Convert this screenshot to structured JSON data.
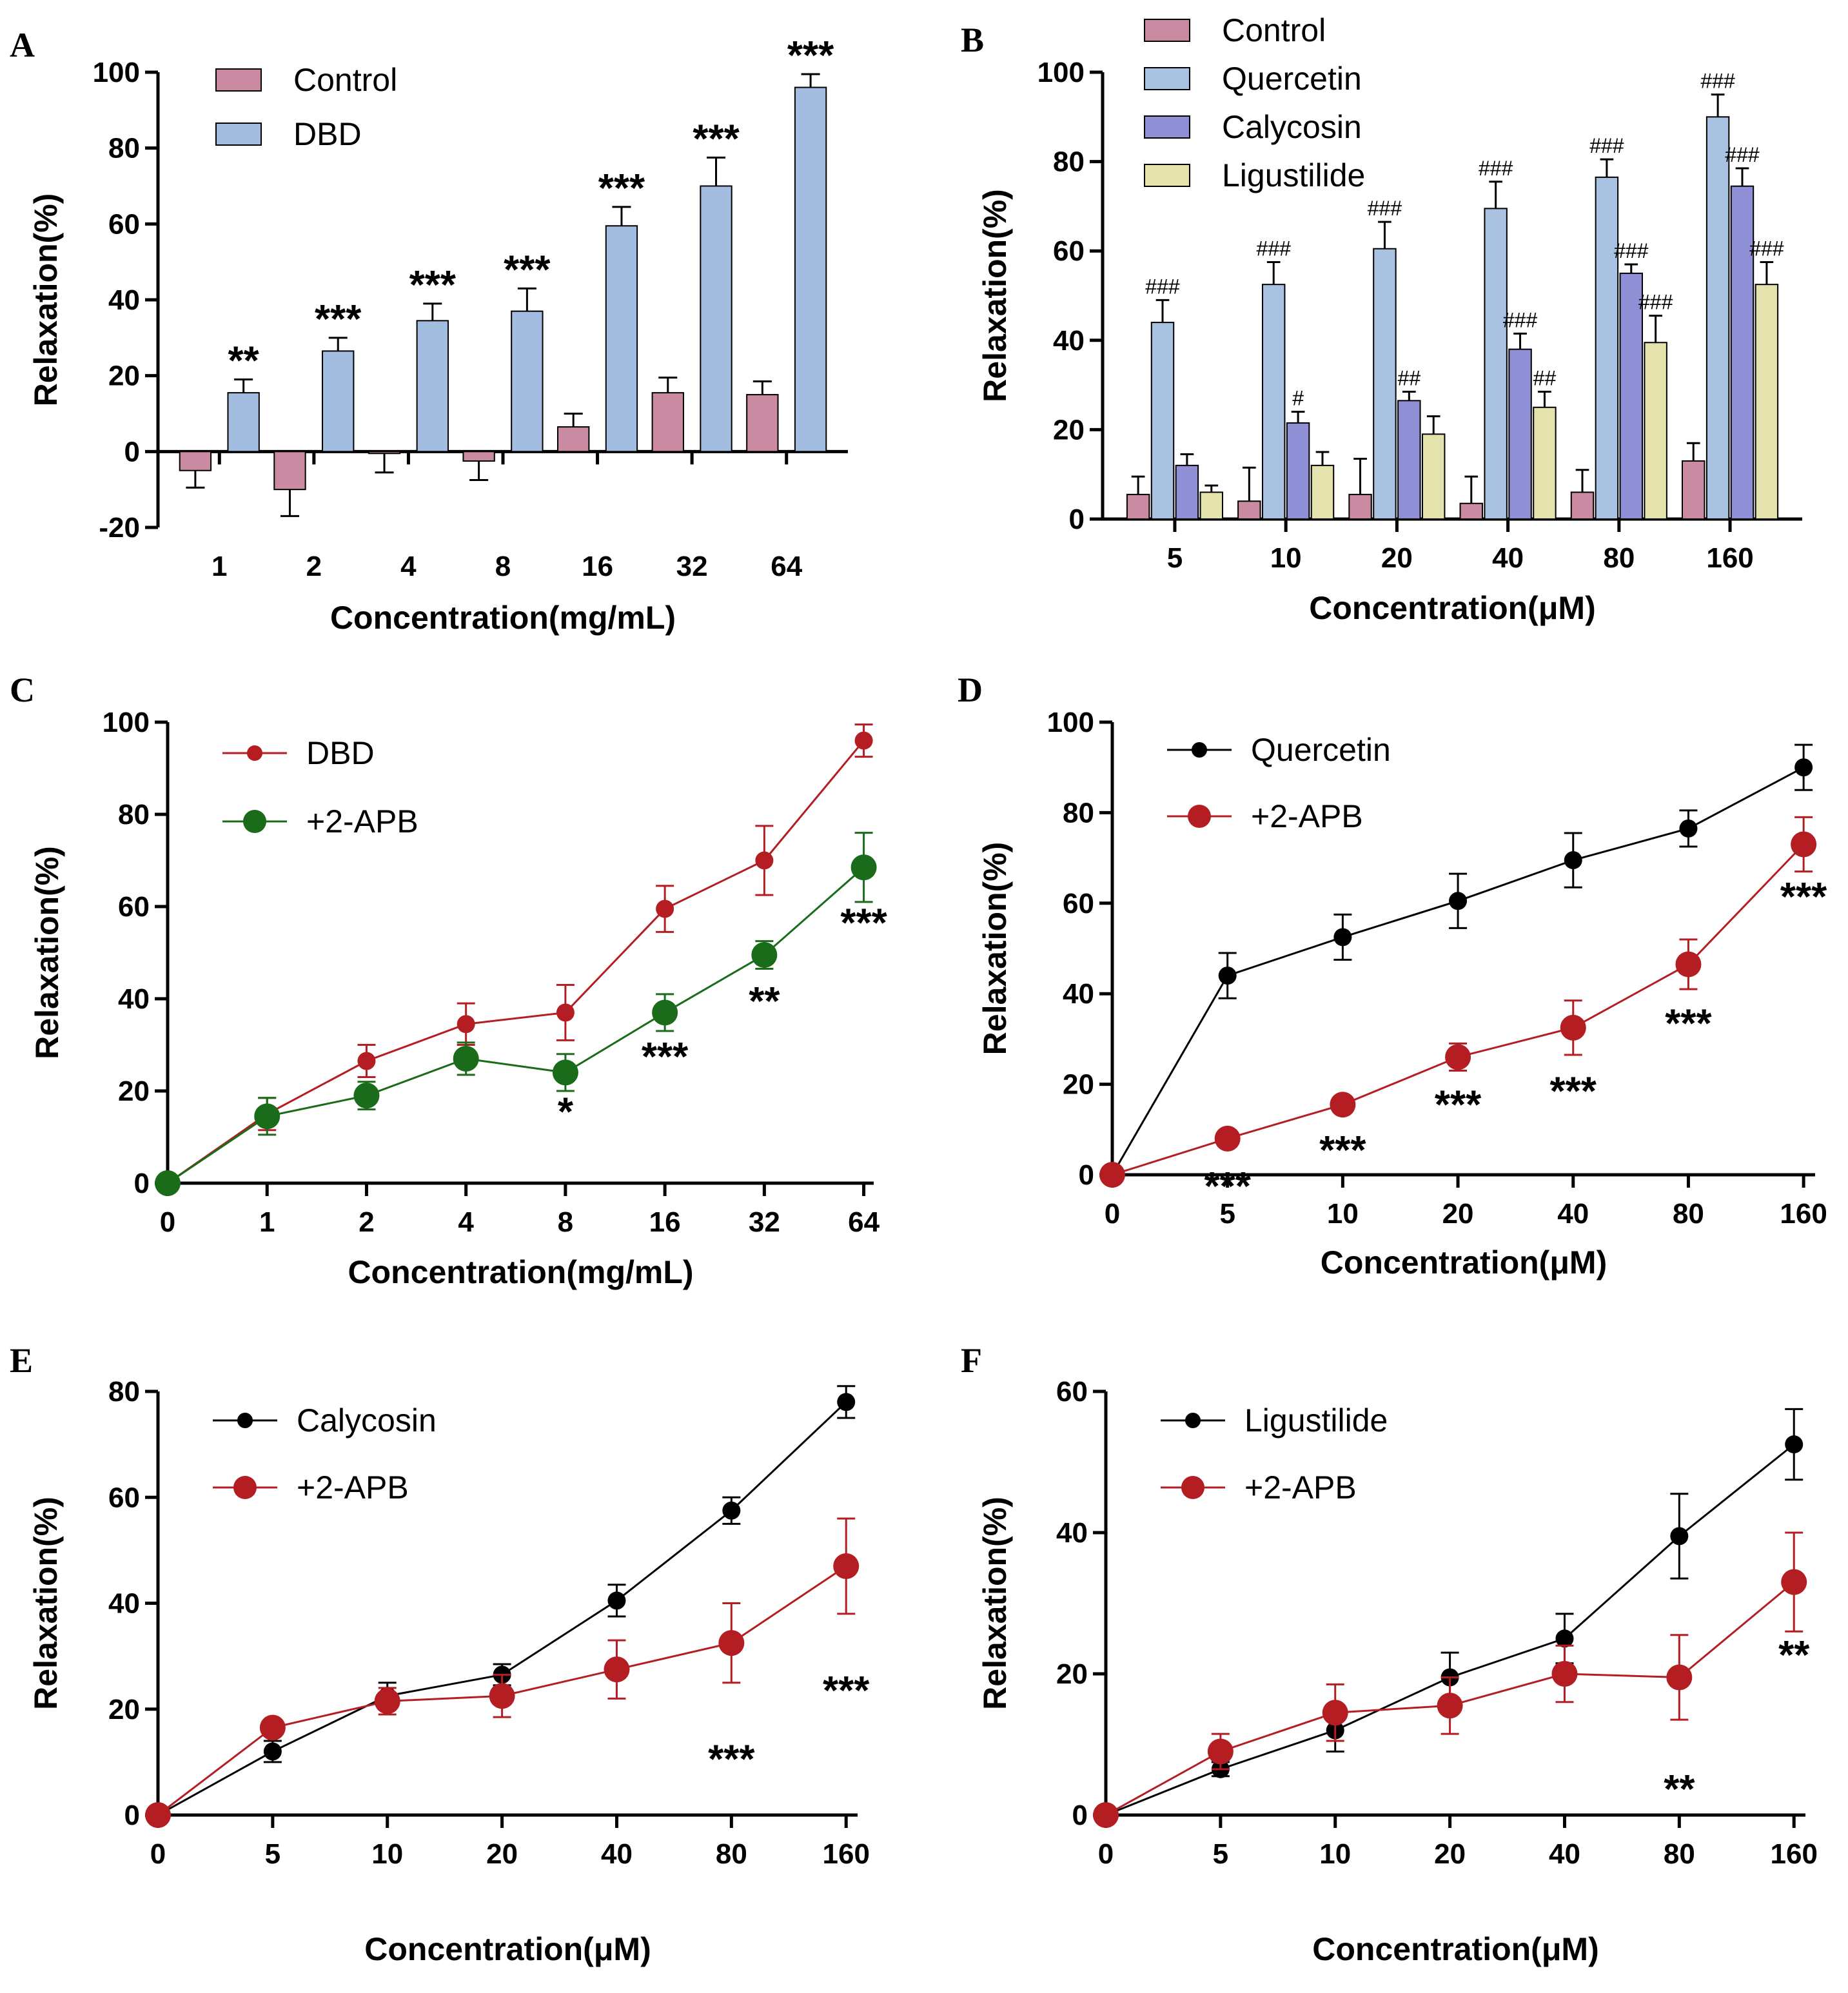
{
  "figure": {
    "colors": {
      "control": "#c98aa2",
      "dbd": "#a3bde0",
      "quercetin": "#a9c2e1",
      "calycosin": "#8f8fd6",
      "ligustilide": "#e5e3ad",
      "red": "#b41e22",
      "green": "#1a6b1a",
      "black": "#000000"
    }
  },
  "chart_data": [
    {
      "id": "A",
      "type": "bar",
      "panel_label": "A",
      "xlabel": "Concentration(mg/mL)",
      "ylabel": "Relaxation(%)",
      "ylim": [
        -20,
        100
      ],
      "yticks": [
        "-20",
        "0",
        "20",
        "40",
        "60",
        "80",
        "100"
      ],
      "categories": [
        "1",
        "2",
        "4",
        "8",
        "16",
        "32",
        "64"
      ],
      "legend": "top-left",
      "series": [
        {
          "name": "Control",
          "color": "#c98aa2",
          "values": [
            -5,
            -10,
            -0.5,
            -2.5,
            6.5,
            15.5,
            15
          ],
          "errors": [
            4.5,
            7,
            5,
            5,
            3.5,
            4,
            3.5
          ]
        },
        {
          "name": "DBD",
          "color": "#a3bde0",
          "values": [
            15.5,
            26.5,
            34.5,
            37,
            59.5,
            70,
            96
          ],
          "errors": [
            3.5,
            3.5,
            4.5,
            6,
            5,
            7.5,
            3.5
          ]
        }
      ],
      "annotations": [
        {
          "category": "1",
          "series": "DBD",
          "text": "**"
        },
        {
          "category": "2",
          "series": "DBD",
          "text": "***"
        },
        {
          "category": "4",
          "series": "DBD",
          "text": "***"
        },
        {
          "category": "8",
          "series": "DBD",
          "text": "***"
        },
        {
          "category": "16",
          "series": "DBD",
          "text": "***"
        },
        {
          "category": "32",
          "series": "DBD",
          "text": "***"
        },
        {
          "category": "64",
          "series": "DBD",
          "text": "***"
        }
      ]
    },
    {
      "id": "B",
      "type": "bar",
      "panel_label": "B",
      "xlabel": "Concentration(μM)",
      "ylabel": "Relaxation(%)",
      "ylim": [
        0,
        100
      ],
      "yticks": [
        "0",
        "20",
        "40",
        "60",
        "80",
        "100"
      ],
      "categories": [
        "5",
        "10",
        "20",
        "40",
        "80",
        "160"
      ],
      "legend": "top-left",
      "series": [
        {
          "name": "Control",
          "color": "#c98aa2",
          "values": [
            5.5,
            4,
            5.5,
            3.5,
            6,
            13
          ],
          "errors": [
            4,
            7.5,
            8,
            6,
            5,
            4
          ]
        },
        {
          "name": "Quercetin",
          "color": "#a9c2e1",
          "values": [
            44,
            52.5,
            60.5,
            69.5,
            76.5,
            90
          ],
          "errors": [
            5,
            5,
            6,
            6,
            4,
            5
          ]
        },
        {
          "name": "Calycosin",
          "color": "#8f8fd6",
          "values": [
            12,
            21.5,
            26.5,
            38,
            55,
            74.5
          ],
          "errors": [
            2.5,
            2.5,
            2,
            3.5,
            2,
            4
          ]
        },
        {
          "name": "Ligustilide",
          "color": "#e5e3ad",
          "values": [
            6,
            12,
            19,
            25,
            39.5,
            52.5
          ],
          "errors": [
            1.5,
            3,
            4,
            3.5,
            6,
            5
          ]
        }
      ],
      "annotations": [
        {
          "category": "5",
          "series": "Quercetin",
          "text": "###"
        },
        {
          "category": "10",
          "series": "Quercetin",
          "text": "###"
        },
        {
          "category": "20",
          "series": "Quercetin",
          "text": "###"
        },
        {
          "category": "40",
          "series": "Quercetin",
          "text": "###"
        },
        {
          "category": "80",
          "series": "Quercetin",
          "text": "###"
        },
        {
          "category": "160",
          "series": "Quercetin",
          "text": "###"
        },
        {
          "category": "10",
          "series": "Calycosin",
          "text": "#"
        },
        {
          "category": "20",
          "series": "Calycosin",
          "text": "##"
        },
        {
          "category": "40",
          "series": "Calycosin",
          "text": "###"
        },
        {
          "category": "80",
          "series": "Calycosin",
          "text": "###"
        },
        {
          "category": "160",
          "series": "Calycosin",
          "text": "###"
        },
        {
          "category": "40",
          "series": "Ligustilide",
          "text": "##"
        },
        {
          "category": "80",
          "series": "Ligustilide",
          "text": "###"
        },
        {
          "category": "160",
          "series": "Ligustilide",
          "text": "###"
        }
      ]
    },
    {
      "id": "C",
      "type": "line",
      "panel_label": "C",
      "xlabel": "Concentration(mg/mL)",
      "ylabel": "Relaxation(%)",
      "ylim": [
        0,
        100
      ],
      "yticks": [
        "0",
        "20",
        "40",
        "60",
        "80",
        "100"
      ],
      "categories": [
        "0",
        "1",
        "2",
        "4",
        "8",
        "16",
        "32",
        "64"
      ],
      "legend": "top-left",
      "series": [
        {
          "name": "DBD",
          "color": "#b41e22",
          "marker_size": "small",
          "values": [
            0,
            15,
            26.5,
            34.5,
            37,
            59.5,
            70,
            96
          ],
          "errors": [
            0,
            3.5,
            3.5,
            4.5,
            6,
            5,
            7.5,
            3.5
          ]
        },
        {
          "name": "+2-APB",
          "color": "#1a6b1a",
          "marker_size": "large",
          "values": [
            0,
            14.5,
            19,
            27,
            24,
            37,
            49.5,
            68.5
          ],
          "errors": [
            0,
            4,
            3,
            3.5,
            4,
            4,
            3,
            7.5
          ]
        }
      ],
      "annotations": [
        {
          "category": "8",
          "text": "*",
          "y": 16
        },
        {
          "category": "16",
          "text": "***",
          "y": 28
        },
        {
          "category": "32",
          "text": "**",
          "y": 40
        },
        {
          "category": "64",
          "text": "***",
          "y": 57
        }
      ]
    },
    {
      "id": "D",
      "type": "line",
      "panel_label": "D",
      "xlabel": "Concentration(μM)",
      "ylabel": "Relaxation(%)",
      "ylim": [
        0,
        100
      ],
      "yticks": [
        "0",
        "20",
        "40",
        "60",
        "80",
        "100"
      ],
      "categories": [
        "0",
        "5",
        "10",
        "20",
        "40",
        "80",
        "160"
      ],
      "legend": "top-left",
      "series": [
        {
          "name": "Quercetin",
          "color": "#000000",
          "marker_size": "small",
          "values": [
            0,
            44,
            52.5,
            60.5,
            69.5,
            76.5,
            90
          ],
          "errors": [
            0,
            5,
            5,
            6,
            6,
            4,
            5
          ]
        },
        {
          "name": "+2-APB",
          "color": "#b41e22",
          "marker_size": "large",
          "values": [
            0,
            8,
            15.5,
            26,
            32.5,
            46.5,
            73
          ],
          "errors": [
            0,
            0,
            0,
            3,
            6,
            5.5,
            6
          ]
        }
      ],
      "annotations": [
        {
          "category": "5",
          "text": "***",
          "y": -2
        },
        {
          "category": "10",
          "text": "***",
          "y": 6
        },
        {
          "category": "20",
          "text": "***",
          "y": 16
        },
        {
          "category": "40",
          "text": "***",
          "y": 19
        },
        {
          "category": "80",
          "text": "***",
          "y": 34
        },
        {
          "category": "160",
          "text": "***",
          "y": 62
        }
      ]
    },
    {
      "id": "E",
      "type": "line",
      "panel_label": "E",
      "xlabel": "Concentration(μM)",
      "ylabel": "Relaxation(%)",
      "ylim": [
        0,
        80
      ],
      "yticks": [
        "0",
        "20",
        "40",
        "60",
        "80"
      ],
      "categories": [
        "0",
        "5",
        "10",
        "20",
        "40",
        "80",
        "160"
      ],
      "legend": "top-left",
      "series": [
        {
          "name": "Calycosin",
          "color": "#000000",
          "marker_size": "small",
          "values": [
            0,
            12,
            22.5,
            26.5,
            40.5,
            57.5,
            78
          ],
          "errors": [
            0,
            2,
            2.5,
            2,
            3,
            2.5,
            3
          ]
        },
        {
          "name": "+2-APB",
          "color": "#b41e22",
          "marker_size": "large",
          "values": [
            0,
            16.5,
            21.5,
            22.5,
            27.5,
            32.5,
            47
          ],
          "errors": [
            0,
            0,
            2.5,
            4,
            5.5,
            7.5,
            9
          ]
        }
      ],
      "annotations": [
        {
          "category": "80",
          "text": "***",
          "y": 11
        },
        {
          "category": "160",
          "text": "***",
          "y": 24
        }
      ]
    },
    {
      "id": "F",
      "type": "line",
      "panel_label": "F",
      "xlabel": "Concentration(μM)",
      "ylabel": "Relaxation(%)",
      "ylim": [
        0,
        60
      ],
      "yticks": [
        "0",
        "20",
        "40",
        "60"
      ],
      "categories": [
        "0",
        "5",
        "10",
        "20",
        "40",
        "80",
        "160"
      ],
      "legend": "top-left",
      "series": [
        {
          "name": "Ligustilide",
          "color": "#000000",
          "marker_size": "small",
          "values": [
            0,
            6.5,
            12,
            19.5,
            25,
            39.5,
            52.5
          ],
          "errors": [
            0,
            1,
            3,
            3.5,
            3.5,
            6,
            5
          ]
        },
        {
          "name": "+2-APB",
          "color": "#b41e22",
          "marker_size": "large",
          "values": [
            0,
            9,
            14.5,
            15.5,
            20,
            19.5,
            33
          ],
          "errors": [
            0,
            2.5,
            4,
            4,
            4,
            6,
            7
          ]
        }
      ],
      "annotations": [
        {
          "category": "80",
          "text": "**",
          "y": 4
        },
        {
          "category": "160",
          "text": "**",
          "y": 23
        }
      ]
    }
  ]
}
